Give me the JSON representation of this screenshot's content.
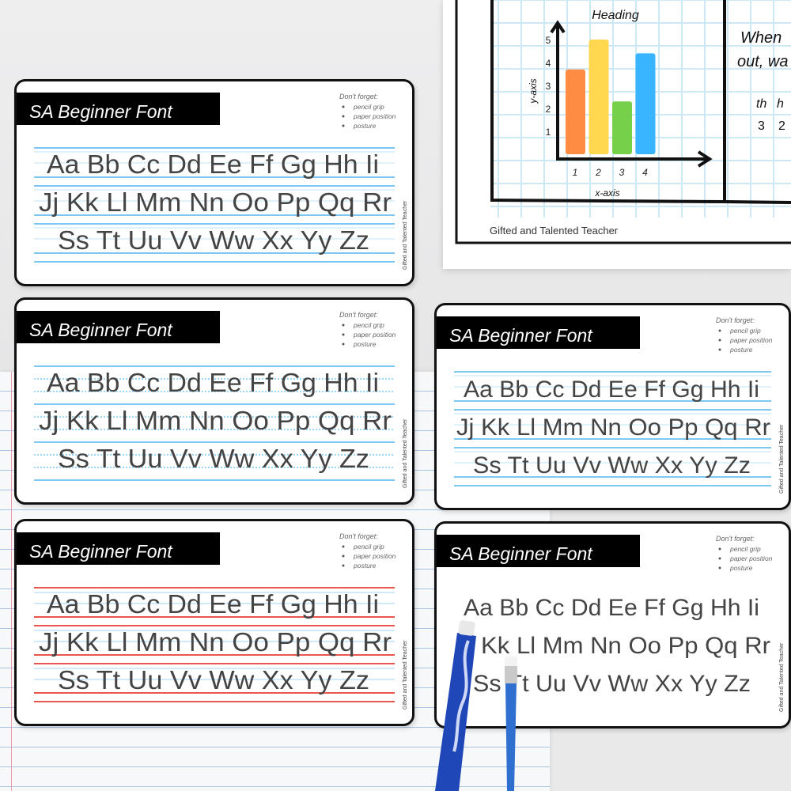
{
  "poster": {
    "chart_title": "Heading",
    "xlabel": "x-axis",
    "ylabel": "y-axis",
    "side_text_lines": [
      "When",
      "out, wa"
    ],
    "side_table": {
      "headers": [
        "th",
        "h"
      ],
      "values": [
        "3",
        "2"
      ]
    },
    "footer": "Gifted and Talented Teacher",
    "chart_data": {
      "type": "bar",
      "title": "Heading",
      "xlabel": "x-axis",
      "ylabel": "y-axis",
      "categories": [
        "1",
        "2",
        "3",
        "4"
      ],
      "values": [
        3.7,
        5,
        2.3,
        4.4
      ],
      "yticks": [
        "1",
        "2",
        "3",
        "4",
        "5"
      ],
      "ylim": [
        0,
        5.5
      ],
      "colors": [
        "#ff8c42",
        "#ffd84f",
        "#77d04a",
        "#39b4ff"
      ],
      "grid": true
    }
  },
  "card_common": {
    "title": "SA Beginner Font",
    "reminder_heading": "Don't forget:",
    "reminders": [
      "pencil grip",
      "paper position",
      "posture"
    ],
    "credit": "Gifted and Talented Teacher",
    "rows": [
      "Aa Bb Cc Dd Ee Ff Gg Hh Ii",
      "Jj Kk Ll Mm Nn Oo Pp Qq Rr",
      "Ss Tt Uu Vv Ww Xx Yy Zz"
    ]
  },
  "cards": [
    {
      "line_style": "blue-solid",
      "line_color": "#7cc8f2"
    },
    {
      "line_style": "blue-dotted",
      "line_color": "#7cc8f2"
    },
    {
      "line_style": "blue-solid",
      "line_color": "#7cc8f2"
    },
    {
      "line_style": "red-baseline",
      "line_color": "#e8564e"
    },
    {
      "line_style": "none",
      "line_color": ""
    }
  ],
  "colors": {
    "text": "#444444",
    "title_bar": "#000000",
    "pen_blue": "#1f47b8"
  }
}
